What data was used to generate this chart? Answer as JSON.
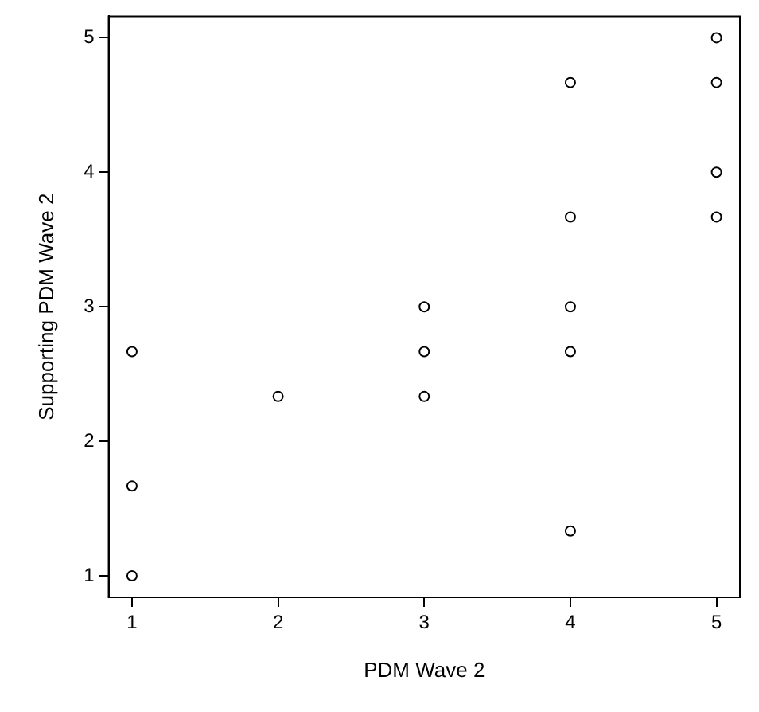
{
  "chart_data": {
    "type": "scatter",
    "xlabel": "PDM Wave 2",
    "ylabel": "Supporting PDM Wave 2",
    "x": [
      1,
      1,
      1,
      2,
      3,
      3,
      3,
      4,
      4,
      4,
      4,
      4,
      5,
      5,
      5,
      5
    ],
    "values": [
      2.667,
      1.667,
      1.0,
      2.333,
      3.0,
      2.667,
      2.333,
      4.667,
      3.667,
      3.0,
      2.667,
      1.333,
      5.0,
      4.667,
      4.0,
      3.667
    ],
    "color": "#000000",
    "marker": "circle",
    "grid": false,
    "legend": false,
    "xlim": [
      0.84,
      5.16
    ],
    "xticks": [
      1,
      2,
      3,
      4,
      5
    ],
    "ylim": [
      0.84,
      5.16
    ],
    "yticks": [
      1,
      2,
      3,
      4,
      5
    ]
  }
}
